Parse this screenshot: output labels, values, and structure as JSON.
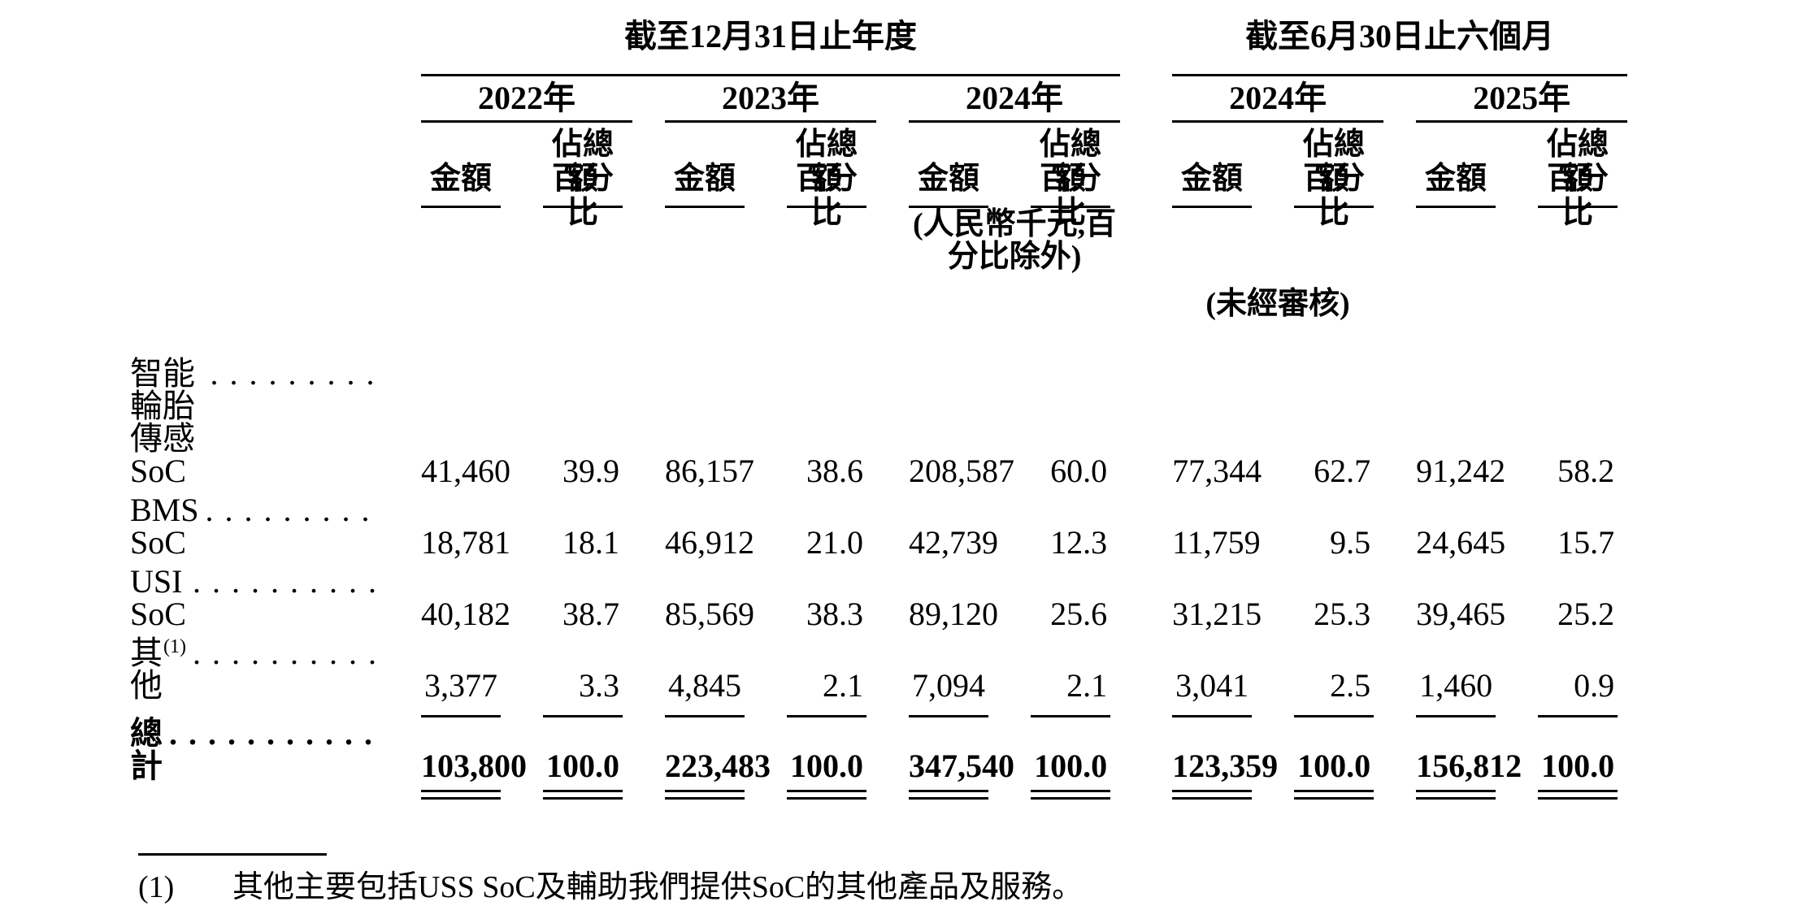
{
  "colors": {
    "text": "#000000",
    "background": "#ffffff",
    "rule": "#000000"
  },
  "table": {
    "period_groups": [
      {
        "title": "截至12月31日止年度",
        "years": [
          "2022年",
          "2023年",
          "2024年"
        ]
      },
      {
        "title": "截至6月30日止六個月",
        "years": [
          "2024年",
          "2025年"
        ]
      }
    ],
    "subheaders": {
      "amount": "金額",
      "percent_line1": "佔總額",
      "percent_line2": "百分比"
    },
    "unit_note": "(人民幣千元,百分比除外)",
    "unaudited_note": "(未經審核)",
    "leader_dots": ". . . . . . . . . . . . . . . . . . . . . . . . . . . . . .",
    "rows": [
      {
        "label": "智能輪胎傳感SoC",
        "values": [
          "41,460",
          "39.9",
          "86,157",
          "38.6",
          "208,587",
          "60.0",
          "77,344",
          "62.7",
          "91,242",
          "58.2"
        ]
      },
      {
        "label": "BMS SoC",
        "values": [
          "18,781",
          "18.1",
          "46,912",
          "21.0",
          "42,739",
          "12.3",
          "11,759",
          "9.5",
          "24,645",
          "15.7"
        ]
      },
      {
        "label": "USI SoC",
        "values": [
          "40,182",
          "38.7",
          "85,569",
          "38.3",
          "89,120",
          "25.6",
          "31,215",
          "25.3",
          "39,465",
          "25.2"
        ]
      },
      {
        "label": "其他",
        "note_ref": "(1)",
        "rule_below": true,
        "values": [
          "3,377",
          "3.3",
          "4,845",
          "2.1",
          "7,094",
          "2.1",
          "3,041",
          "2.5",
          "1,460",
          "0.9"
        ]
      },
      {
        "label": "總計",
        "bold": true,
        "double_rule_below": true,
        "values": [
          "103,800",
          "100.0",
          "223,483",
          "100.0",
          "347,540",
          "100.0",
          "123,359",
          "100.0",
          "156,812",
          "100.0"
        ]
      }
    ],
    "footnote": {
      "marker": "(1)",
      "text": "其他主要包括USS SoC及輔助我們提供SoC的其他產品及服務。"
    }
  }
}
